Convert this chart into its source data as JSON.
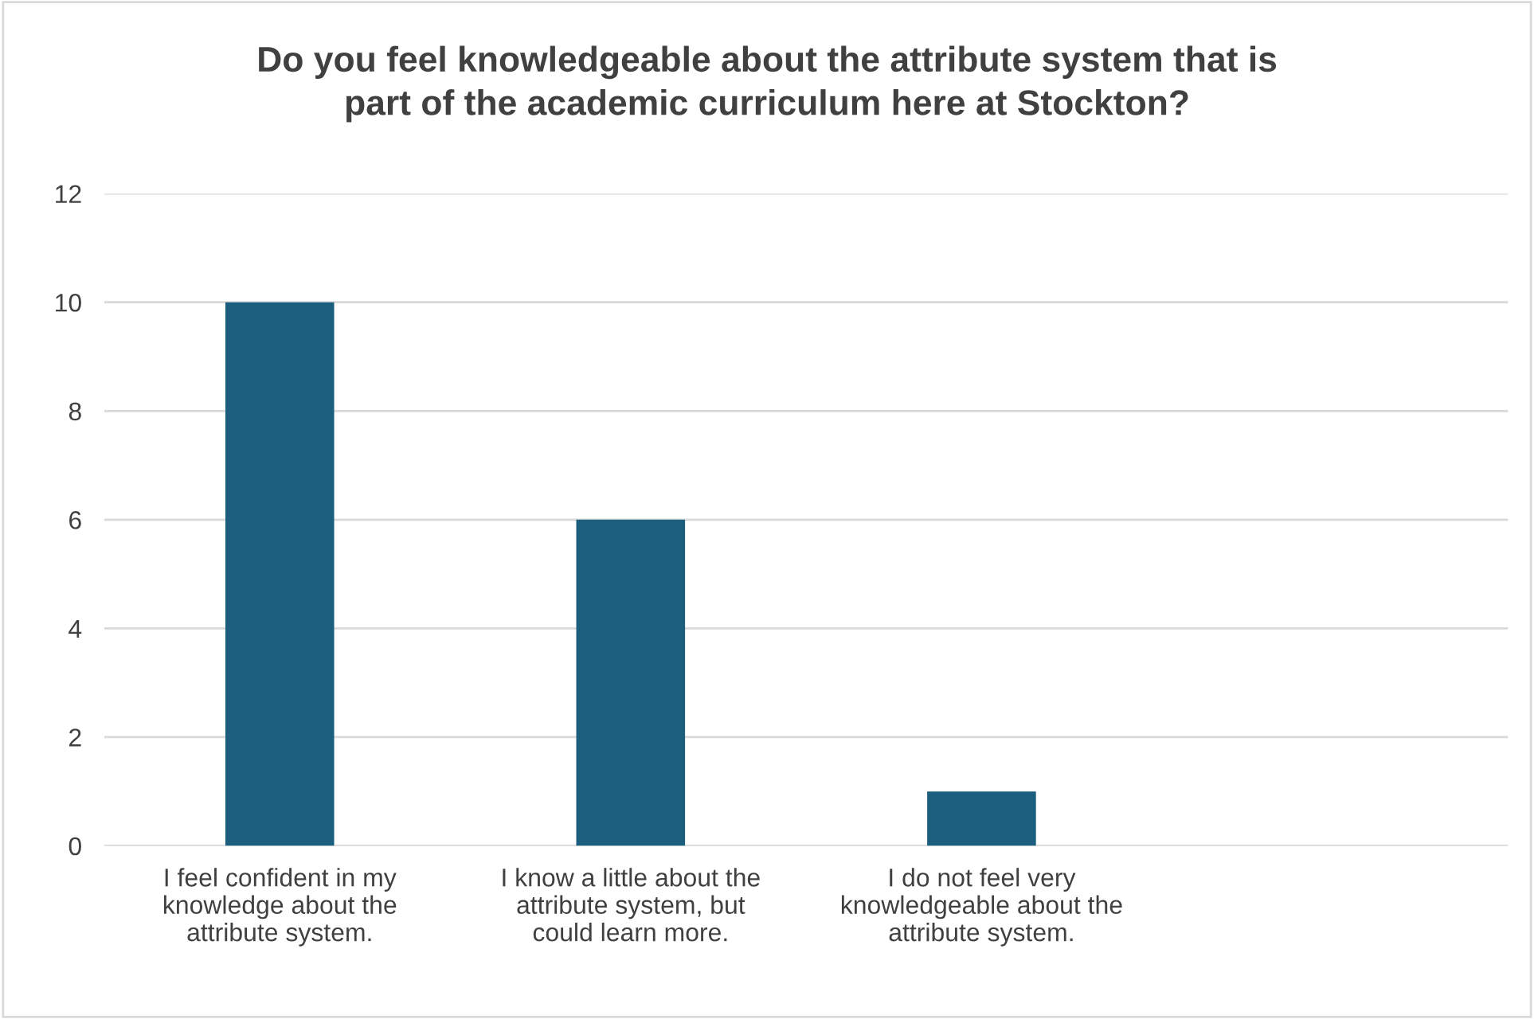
{
  "chart_data": {
    "type": "bar",
    "title": "Do you feel knowledgeable about the attribute system that is\npart of the academic curriculum here at Stockton?",
    "categories": [
      "I feel confident in my\nknowledge about the\nattribute system.",
      "I know a little about the\nattribute system, but\ncould learn more.",
      "I do not feel very\nknowledgeable about the\nattribute system.",
      null
    ],
    "values": [
      10,
      6,
      1,
      null
    ],
    "color": "#1b5e7e",
    "ylim": [
      0,
      12
    ],
    "yticks": [
      0,
      2,
      4,
      6,
      8,
      10,
      12
    ],
    "grid": "y",
    "legend": false
  }
}
